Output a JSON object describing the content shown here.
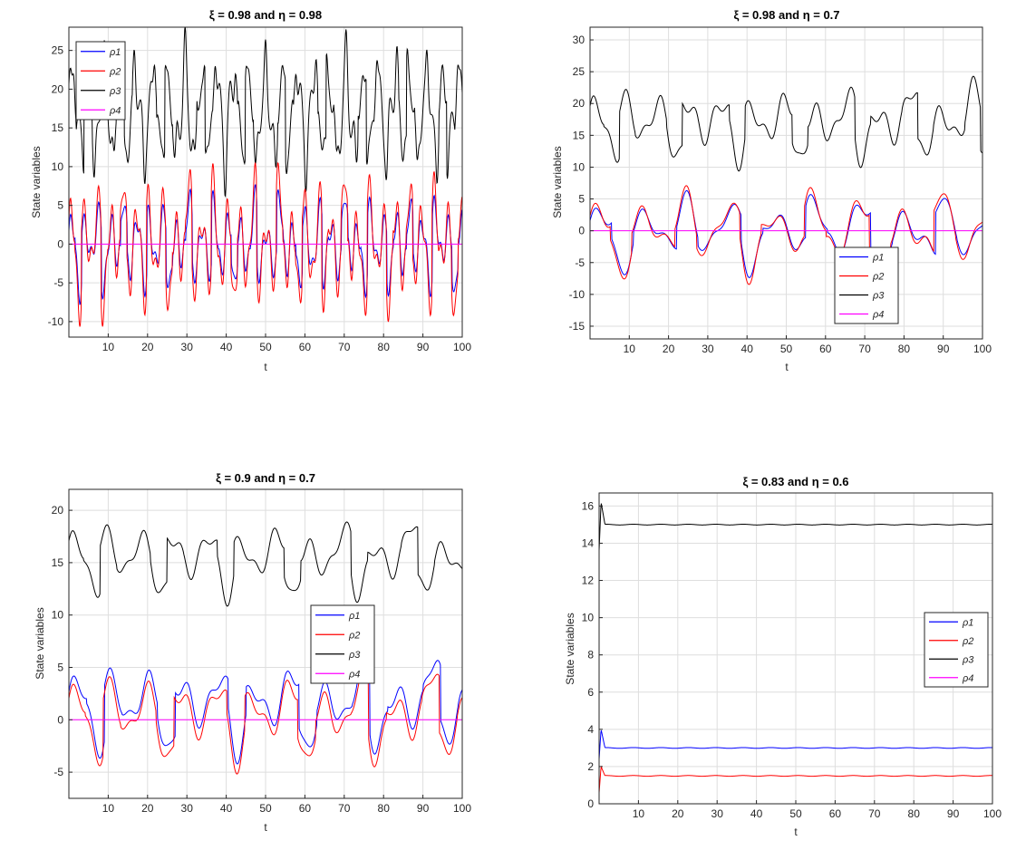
{
  "figure": {
    "background": "#ffffff",
    "axis_color": "#262626",
    "grid_color": "#dedede"
  },
  "chart_data": [
    {
      "type": "line",
      "title": "ξ = 0.98 and η = 0.98",
      "xlabel": "t",
      "ylabel": "State variables",
      "xlim": [
        0,
        100
      ],
      "ylim": [
        -12,
        28
      ],
      "xticks": [
        10,
        20,
        30,
        40,
        50,
        60,
        70,
        80,
        90,
        100
      ],
      "yticks": [
        -10,
        -5,
        0,
        5,
        10,
        15,
        20,
        25
      ],
      "grid": true,
      "legend": "top-left",
      "series": [
        {
          "name": "ρ1",
          "color": "#0000ff",
          "osc": {
            "amp": 4.2,
            "base": 0.0,
            "p1": 3.3,
            "p2": 5.9,
            "w": 0.35
          }
        },
        {
          "name": "ρ2",
          "color": "#ff0000",
          "osc": {
            "amp": 6.0,
            "base": 0.0,
            "p1": 3.3,
            "p2": 5.9,
            "w": 0.35
          }
        },
        {
          "name": "ρ3",
          "color": "#000000",
          "osc": {
            "amp": 5.5,
            "base": 17.0,
            "p1": 4.1,
            "p2": 2.7,
            "w": 0.4
          }
        },
        {
          "name": "ρ4",
          "color": "#ff00ff",
          "constant": 0
        }
      ]
    },
    {
      "type": "line",
      "title": "ξ = 0.98 and η = 0.7",
      "xlabel": "t",
      "ylabel": "State variables",
      "xlim": [
        0,
        100
      ],
      "ylim": [
        -17,
        32
      ],
      "xticks": [
        10,
        20,
        30,
        40,
        50,
        60,
        70,
        80,
        90,
        100
      ],
      "yticks": [
        -15,
        -10,
        -5,
        0,
        5,
        10,
        15,
        20,
        25,
        30
      ],
      "grid": true,
      "legend": "bottom-center",
      "series": [
        {
          "name": "ρ1",
          "color": "#0000ff",
          "osc": {
            "amp": 4.0,
            "base": 0.0,
            "p1": 11.0,
            "p2": 17.0,
            "w": 0.3
          }
        },
        {
          "name": "ρ2",
          "color": "#ff0000",
          "osc": {
            "amp": 4.5,
            "base": 0.0,
            "p1": 11.0,
            "p2": 17.0,
            "w": 0.3
          }
        },
        {
          "name": "ρ3",
          "color": "#000000",
          "osc": {
            "amp": 4.0,
            "base": 17.0,
            "p1": 8.0,
            "p2": 16.0,
            "w": 0.35
          }
        },
        {
          "name": "ρ4",
          "color": "#ff00ff",
          "constant": 0
        }
      ]
    },
    {
      "type": "line",
      "title": "ξ = 0.9 and η = 0.7",
      "xlabel": "t",
      "ylabel": "State variables",
      "xlim": [
        0,
        100
      ],
      "ylim": [
        -7.5,
        22
      ],
      "xticks": [
        10,
        20,
        30,
        40,
        50,
        60,
        70,
        80,
        90,
        100
      ],
      "yticks": [
        -5,
        0,
        5,
        10,
        15,
        20
      ],
      "grid": true,
      "legend": "center-right",
      "series": [
        {
          "name": "ρ1",
          "color": "#0000ff",
          "osc": {
            "amp": 3.0,
            "base": 1.5,
            "p1": 9.0,
            "p2": 18.0,
            "w": 0.3
          }
        },
        {
          "name": "ρ2",
          "color": "#ff0000",
          "osc": {
            "amp": 3.0,
            "base": 0.5,
            "p1": 9.0,
            "p2": 18.0,
            "w": 0.3
          }
        },
        {
          "name": "ρ3",
          "color": "#000000",
          "osc": {
            "amp": 2.5,
            "base": 15.5,
            "p1": 8.5,
            "p2": 17.0,
            "w": 0.3
          }
        },
        {
          "name": "ρ4",
          "color": "#ff00ff",
          "constant": 0
        }
      ]
    },
    {
      "type": "line",
      "title": "ξ = 0.83 and η = 0.6",
      "xlabel": "t",
      "ylabel": "State variables",
      "xlim": [
        0,
        100
      ],
      "ylim": [
        0,
        16.7
      ],
      "xticks": [
        10,
        20,
        30,
        40,
        50,
        60,
        70,
        80,
        90,
        100
      ],
      "yticks": [
        0,
        2,
        4,
        6,
        8,
        10,
        12,
        14,
        16
      ],
      "grid": true,
      "legend": "center-right",
      "series": [
        {
          "name": "ρ1",
          "color": "#0000ff",
          "steady": 3.0,
          "start": 2.4,
          "peak": 4.0
        },
        {
          "name": "ρ2",
          "color": "#ff0000",
          "steady": 1.5,
          "start": 0.6,
          "peak": 2.0
        },
        {
          "name": "ρ3",
          "color": "#000000",
          "steady": 15.0,
          "start": 13.6,
          "peak": 16.2
        },
        {
          "name": "ρ4",
          "color": "#ff00ff",
          "constant": 0
        }
      ]
    }
  ]
}
